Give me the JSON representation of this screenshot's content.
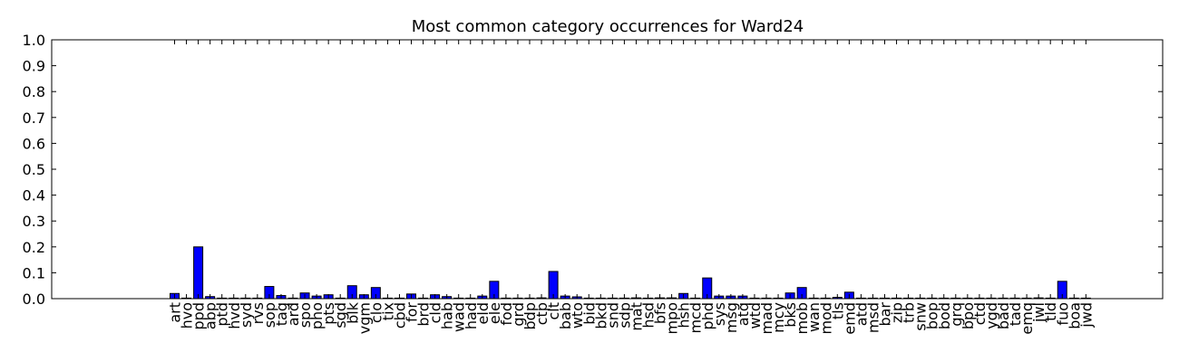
{
  "chart_data": {
    "type": "bar",
    "title": "Most common category occurrences for Ward24",
    "xlabel": "",
    "ylabel": "",
    "ylim": [
      0,
      1.0
    ],
    "yticks": [
      "0.0",
      "0.1",
      "0.2",
      "0.3",
      "0.4",
      "0.5",
      "0.6",
      "0.7",
      "0.8",
      "0.9",
      "1.0"
    ],
    "grid": false,
    "bar_color": "#0000ff",
    "categories": [
      "art",
      "hvo",
      "ppd",
      "abp",
      "ptd",
      "hvd",
      "syd",
      "rvs",
      "sop",
      "tag",
      "ard",
      "spo",
      "pho",
      "pts",
      "sgd",
      "blk",
      "vgm",
      "clo",
      "tix",
      "cbd",
      "for",
      "brd",
      "cld",
      "hab",
      "wad",
      "had",
      "eld",
      "ele",
      "fod",
      "grd",
      "bdp",
      "ctp",
      "clt",
      "bab",
      "wto",
      "bid",
      "bkd",
      "snd",
      "sdp",
      "mat",
      "hsd",
      "bfs",
      "mpo",
      "hsh",
      "mcd",
      "phd",
      "sys",
      "msg",
      "atq",
      "wtd",
      "mad",
      "mcy",
      "bks",
      "mob",
      "wan",
      "mod",
      "tls",
      "emd",
      "atd",
      "msd",
      "bar",
      "zip",
      "trb",
      "snw",
      "bop",
      "bod",
      "grq",
      "bpo",
      "ctd",
      "ygd",
      "bad",
      "tad",
      "emq",
      "jwl",
      "tld",
      "fuo",
      "boa",
      "jwd"
    ],
    "values": [
      0.02,
      0.0,
      0.2,
      0.008,
      0.0,
      0.0,
      0.0,
      0.0,
      0.047,
      0.012,
      0.0,
      0.022,
      0.01,
      0.015,
      0.0,
      0.05,
      0.015,
      0.043,
      0.0,
      0.0,
      0.018,
      0.0,
      0.015,
      0.008,
      0.0,
      0.0,
      0.01,
      0.067,
      0.0,
      0.0,
      0.0,
      0.003,
      0.105,
      0.01,
      0.007,
      0.0,
      0.0,
      0.0,
      0.0,
      0.003,
      0.0,
      0.003,
      0.003,
      0.02,
      0.0,
      0.08,
      0.01,
      0.01,
      0.01,
      0.0,
      0.0,
      0.0,
      0.022,
      0.043,
      0.0,
      0.0,
      0.005,
      0.025,
      0.0,
      0.0,
      0.0,
      0.0,
      0.0,
      0.0,
      0.0,
      0.0,
      0.0,
      0.0,
      0.0,
      0.0,
      0.0,
      0.0,
      0.0,
      0.003,
      0.0,
      0.067,
      0.0,
      0.0
    ]
  }
}
